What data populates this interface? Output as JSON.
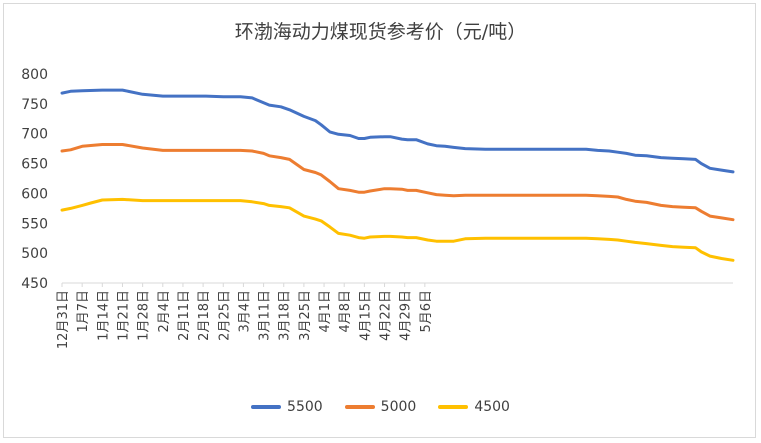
{
  "chart_data": {
    "type": "line",
    "title": "环渤海动力煤现货参考价（元/吨）",
    "xlabel": "",
    "ylabel": "",
    "ylim": [
      450,
      800
    ],
    "yticks": [
      450,
      500,
      550,
      600,
      650,
      700,
      750,
      800
    ],
    "grid": false,
    "legend_position": "bottom",
    "x_tick_labels": [
      "12月31日",
      "1月7日",
      "1月14日",
      "1月21日",
      "1月28日",
      "2月4日",
      "2月11日",
      "2月18日",
      "2月25日",
      "3月4日",
      "3月11日",
      "3月18日",
      "3月25日",
      "4月1日",
      "4月8日",
      "4月15日",
      "4月22日",
      "4月29日",
      "5月6日"
    ],
    "x_start_offset": 0,
    "x_end_offset": 132,
    "series": [
      {
        "name": "5500",
        "color": "#4472c4",
        "points": [
          [
            0,
            768
          ],
          [
            3,
            771
          ],
          [
            7,
            772
          ],
          [
            14,
            773
          ],
          [
            21,
            773
          ],
          [
            28,
            766
          ],
          [
            35,
            763
          ],
          [
            42,
            763
          ],
          [
            50,
            763
          ],
          [
            56,
            762
          ],
          [
            62,
            762
          ],
          [
            66,
            760
          ],
          [
            70,
            752
          ],
          [
            72,
            748
          ],
          [
            76,
            745
          ],
          [
            79,
            740
          ],
          [
            84,
            729
          ],
          [
            88,
            722
          ],
          [
            90,
            715
          ],
          [
            93,
            703
          ],
          [
            96,
            699
          ],
          [
            100,
            697
          ],
          [
            103,
            692
          ],
          [
            105,
            692
          ],
          [
            107,
            694
          ],
          [
            112,
            695
          ],
          [
            114,
            695
          ],
          [
            118,
            691
          ],
          [
            120,
            690
          ],
          [
            123,
            690
          ],
          [
            127,
            683
          ],
          [
            130,
            680
          ],
          [
            133,
            679
          ],
          [
            136,
            677
          ],
          [
            140,
            675
          ],
          [
            147,
            674
          ],
          [
            154,
            674
          ],
          [
            161,
            674
          ],
          [
            168,
            674
          ],
          [
            175,
            674
          ],
          [
            182,
            674
          ],
          [
            186,
            672
          ],
          [
            190,
            671
          ],
          [
            193,
            669
          ],
          [
            196,
            667
          ],
          [
            199,
            664
          ],
          [
            203,
            663
          ],
          [
            208,
            660
          ],
          [
            212,
            659
          ],
          [
            216,
            658
          ],
          [
            220,
            657
          ],
          [
            222,
            650
          ],
          [
            225,
            642
          ],
          [
            229,
            639
          ],
          [
            233,
            636
          ]
        ]
      },
      {
        "name": "5000",
        "color": "#ed7d31",
        "points": [
          [
            0,
            671
          ],
          [
            3,
            673
          ],
          [
            7,
            679
          ],
          [
            14,
            682
          ],
          [
            21,
            682
          ],
          [
            28,
            676
          ],
          [
            35,
            672
          ],
          [
            42,
            672
          ],
          [
            50,
            672
          ],
          [
            56,
            672
          ],
          [
            62,
            672
          ],
          [
            66,
            671
          ],
          [
            70,
            667
          ],
          [
            72,
            663
          ],
          [
            76,
            660
          ],
          [
            79,
            657
          ],
          [
            84,
            640
          ],
          [
            88,
            635
          ],
          [
            90,
            631
          ],
          [
            93,
            620
          ],
          [
            96,
            608
          ],
          [
            100,
            605
          ],
          [
            103,
            602
          ],
          [
            105,
            602
          ],
          [
            107,
            604
          ],
          [
            112,
            608
          ],
          [
            114,
            608
          ],
          [
            118,
            607
          ],
          [
            120,
            605
          ],
          [
            123,
            605
          ],
          [
            127,
            601
          ],
          [
            130,
            598
          ],
          [
            133,
            597
          ],
          [
            136,
            596
          ],
          [
            140,
            597
          ],
          [
            147,
            597
          ],
          [
            154,
            597
          ],
          [
            161,
            597
          ],
          [
            168,
            597
          ],
          [
            175,
            597
          ],
          [
            182,
            597
          ],
          [
            186,
            596
          ],
          [
            190,
            595
          ],
          [
            193,
            594
          ],
          [
            196,
            590
          ],
          [
            199,
            587
          ],
          [
            203,
            585
          ],
          [
            208,
            580
          ],
          [
            212,
            578
          ],
          [
            216,
            577
          ],
          [
            220,
            576
          ],
          [
            222,
            570
          ],
          [
            225,
            562
          ],
          [
            229,
            559
          ],
          [
            233,
            556
          ]
        ]
      },
      {
        "name": "4500",
        "color": "#ffc000",
        "points": [
          [
            0,
            572
          ],
          [
            3,
            575
          ],
          [
            7,
            580
          ],
          [
            10,
            584
          ],
          [
            14,
            589
          ],
          [
            21,
            590
          ],
          [
            28,
            588
          ],
          [
            35,
            588
          ],
          [
            42,
            588
          ],
          [
            50,
            588
          ],
          [
            56,
            588
          ],
          [
            62,
            588
          ],
          [
            66,
            586
          ],
          [
            70,
            583
          ],
          [
            72,
            580
          ],
          [
            76,
            578
          ],
          [
            79,
            576
          ],
          [
            84,
            562
          ],
          [
            88,
            557
          ],
          [
            90,
            554
          ],
          [
            93,
            544
          ],
          [
            96,
            533
          ],
          [
            100,
            530
          ],
          [
            103,
            526
          ],
          [
            105,
            525
          ],
          [
            107,
            527
          ],
          [
            112,
            528
          ],
          [
            114,
            528
          ],
          [
            118,
            527
          ],
          [
            120,
            526
          ],
          [
            123,
            526
          ],
          [
            127,
            522
          ],
          [
            130,
            520
          ],
          [
            133,
            520
          ],
          [
            136,
            520
          ],
          [
            140,
            524
          ],
          [
            147,
            525
          ],
          [
            154,
            525
          ],
          [
            161,
            525
          ],
          [
            168,
            525
          ],
          [
            175,
            525
          ],
          [
            182,
            525
          ],
          [
            186,
            524
          ],
          [
            190,
            523
          ],
          [
            193,
            522
          ],
          [
            196,
            520
          ],
          [
            199,
            518
          ],
          [
            203,
            516
          ],
          [
            208,
            513
          ],
          [
            212,
            511
          ],
          [
            216,
            510
          ],
          [
            220,
            509
          ],
          [
            222,
            502
          ],
          [
            225,
            495
          ],
          [
            229,
            491
          ],
          [
            233,
            488
          ]
        ]
      }
    ]
  }
}
